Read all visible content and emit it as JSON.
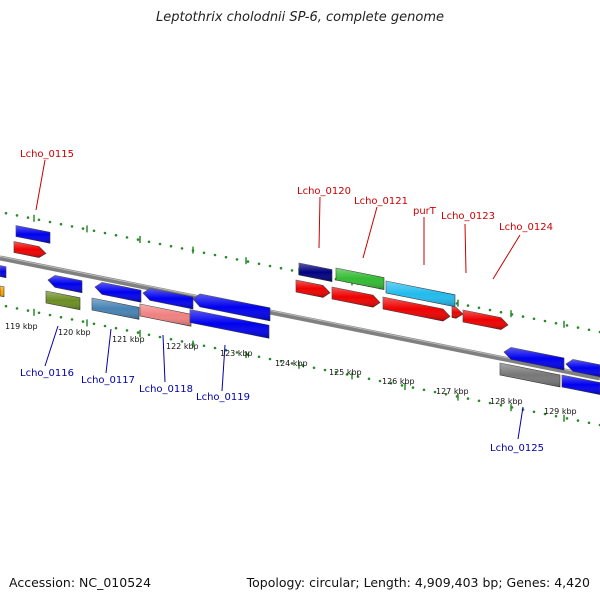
{
  "title": "Leptothrix cholodnii SP-6, complete genome",
  "footer": {
    "accession": "Accession: NC_010524",
    "summary": "Topology: circular; Length: 4,909,403 bp; Genes: 4,420"
  },
  "kbp_ticks": [
    "119 kbp",
    "120 kbp",
    "121 kbp",
    "122 kbp",
    "123 kbp",
    "124 kbp",
    "125 kbp",
    "126 kbp",
    "127 kbp",
    "128 kbp",
    "129 kbp"
  ],
  "gene_labels": {
    "top": [
      "Lcho_0115",
      "Lcho_0120",
      "Lcho_0121",
      "purT",
      "Lcho_0123",
      "Lcho_0124"
    ],
    "bottom": [
      "Lcho_0116",
      "Lcho_0117",
      "Lcho_0118",
      "Lcho_0119",
      "Lcho_0125"
    ]
  },
  "colors": {
    "forward_label": "#cc0000",
    "reverse_label": "#0000aa",
    "tick": "#2a8a2a",
    "backbone": "#808080",
    "blue": "#0000ee",
    "red": "#ee0000",
    "navy": "#000080",
    "green": "#33bb33",
    "cyan": "#22bbee",
    "olive": "#6b8e23",
    "steel": "#4682b4",
    "pink": "#f08080",
    "gray": "#777777",
    "orange": "#ffa500"
  }
}
